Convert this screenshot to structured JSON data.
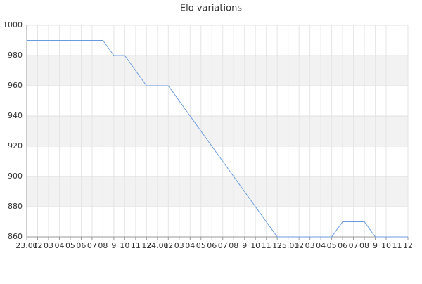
{
  "chart_data": {
    "type": "line",
    "title": "Elo variations",
    "categories": [
      "23.01",
      "02",
      "03",
      "04",
      "05",
      "06",
      "07",
      "08",
      "9",
      "10",
      "11",
      "12",
      "24.01",
      "02",
      "03",
      "04",
      "05",
      "06",
      "07",
      "08",
      "9",
      "10",
      "11",
      "12",
      "25.01",
      "02",
      "03",
      "04",
      "05",
      "06",
      "07",
      "08",
      "9",
      "10",
      "11",
      "12"
    ],
    "series": [
      {
        "name": "Elo",
        "color": "#6a9be0",
        "values": [
          990,
          990,
          990,
          990,
          990,
          990,
          990,
          990,
          980,
          980,
          970,
          960,
          960,
          960,
          950,
          940,
          930,
          920,
          910,
          900,
          890,
          880,
          870,
          860,
          860,
          860,
          860,
          860,
          860,
          870,
          870,
          870,
          860,
          860,
          860,
          860
        ]
      }
    ],
    "ylim": [
      860,
      1000
    ],
    "yticks": [
      860,
      880,
      900,
      920,
      940,
      960,
      980,
      1000
    ],
    "grid": true
  }
}
